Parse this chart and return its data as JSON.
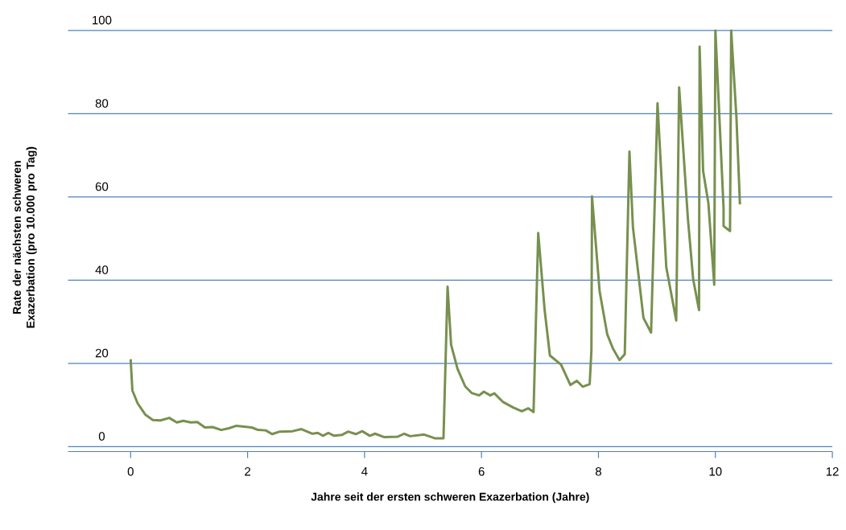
{
  "chart_data": {
    "type": "line",
    "xlabel": "Jahre seit der ersten schweren Exazerbation (Jahre)",
    "ylabel": "Rate der nächsten schweren Exazerbation (pro 10.000 pro Tag)",
    "x": [
      0,
      0.03,
      0.12,
      0.25,
      0.38,
      0.51,
      0.66,
      0.79,
      0.9,
      1.03,
      1.14,
      1.27,
      1.4,
      1.55,
      1.68,
      1.81,
      2.07,
      2.18,
      2.31,
      2.42,
      2.55,
      2.77,
      2.92,
      3.11,
      3.2,
      3.29,
      3.38,
      3.48,
      3.61,
      3.72,
      3.85,
      3.96,
      4.09,
      4.18,
      4.33,
      4.57,
      4.68,
      4.78,
      5.02,
      5.2,
      5.35,
      5.42,
      5.48,
      5.59,
      5.72,
      5.83,
      5.96,
      6.04,
      6.15,
      6.22,
      6.37,
      6.54,
      6.69,
      6.8,
      6.89,
      6.97,
      7.08,
      7.17,
      7.36,
      7.52,
      7.63,
      7.73,
      7.85,
      7.88,
      7.89,
      8.02,
      8.15,
      8.25,
      8.36,
      8.45,
      8.53,
      8.59,
      8.77,
      8.9,
      9.01,
      9.16,
      9.33,
      9.38,
      9.53,
      9.62,
      9.72,
      9.73,
      9.79,
      9.88,
      9.98,
      10.0,
      10.14,
      10.14,
      10.25,
      10.27,
      10.36,
      10.42
    ],
    "series": [
      {
        "color": "#77904f",
        "values": [
          21,
          13.5,
          10.4,
          7.7,
          6.4,
          6.3,
          6.9,
          5.8,
          6.2,
          5.8,
          5.9,
          4.6,
          4.7,
          4.0,
          4.4,
          5.0,
          4.6,
          4.0,
          3.9,
          3.0,
          3.6,
          3.7,
          4.2,
          3.1,
          3.3,
          2.6,
          3.3,
          2.6,
          2.8,
          3.6,
          3.0,
          3.7,
          2.6,
          3.1,
          2.3,
          2.4,
          3.1,
          2.5,
          2.9,
          2.0,
          2.0,
          38.4,
          24.5,
          18.7,
          14.5,
          12.9,
          12.3,
          13.2,
          12.3,
          12.8,
          10.7,
          9.4,
          8.5,
          9.2,
          8.3,
          51.3,
          32.8,
          21.9,
          19.7,
          14.8,
          15.8,
          14.4,
          15.0,
          23.2,
          60.1,
          37.3,
          27.0,
          23.5,
          20.8,
          22.2,
          70.9,
          52.7,
          30.9,
          27.4,
          82.5,
          43.1,
          30.3,
          86.3,
          54.7,
          40.2,
          32.8,
          96.1,
          66.2,
          58.5,
          38.9,
          100,
          57.2,
          53.0,
          51.8,
          100,
          79,
          58.2
        ]
      }
    ],
    "xlim": [
      -1.07,
      12
    ],
    "xticks": [
      0,
      2,
      4,
      6,
      8,
      10,
      12
    ],
    "ylim": [
      -1.2,
      100
    ],
    "yticks": [
      0,
      20,
      40,
      60,
      80,
      100
    ],
    "grid": "y",
    "marker": "none",
    "line_style": "solid"
  }
}
